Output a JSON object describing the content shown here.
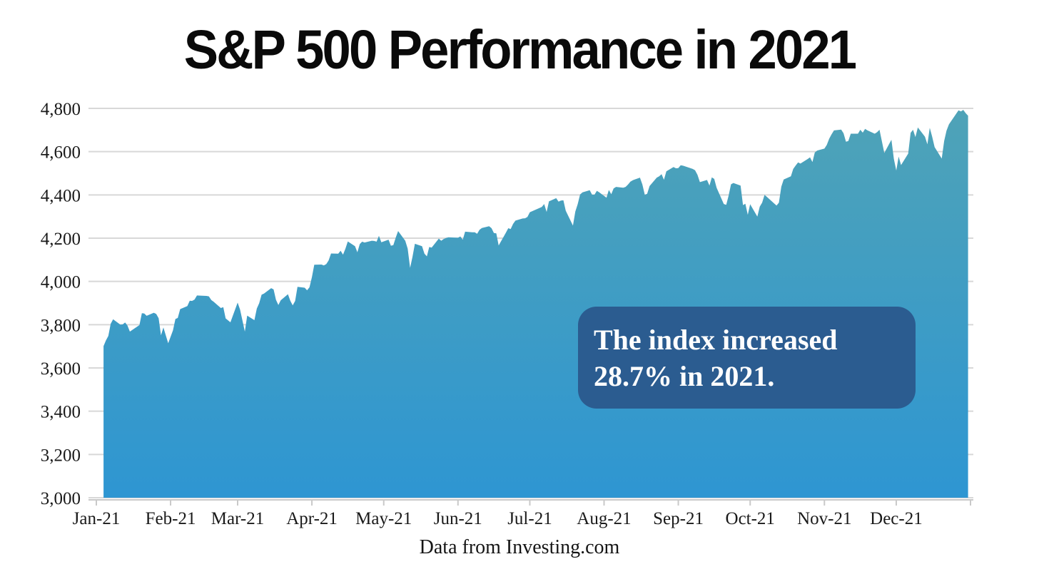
{
  "title": "S&P 500 Performance in 2021",
  "footer": "Data from Investing.com",
  "annotation": {
    "line1": "The index increased",
    "line2": "28.7% in 2021.",
    "bg_color": "#2B5C90",
    "text_color": "#FFFFFF"
  },
  "colors": {
    "area_top": "#4FA3B7",
    "area_bottom": "#2E96D2",
    "gridline": "#D8D8D8",
    "axis": "#C9C9C9",
    "tick_label": "#1A1A1A",
    "title": "#0A0A0A"
  },
  "chart_data": {
    "type": "area",
    "title": "S&P 500 Performance in 2021",
    "xlabel": "",
    "ylabel": "",
    "legend": "none",
    "grid": "horizontal",
    "ylim": [
      3000,
      4800
    ],
    "x_unit": "day of year 2021",
    "annotation_text": "The index increased 28.7% in 2021.",
    "source_text": "Data from Investing.com",
    "y_ticks": [
      {
        "value": 3000,
        "label": "3,000"
      },
      {
        "value": 3200,
        "label": "3,200"
      },
      {
        "value": 3400,
        "label": "3,400"
      },
      {
        "value": 3600,
        "label": "3,600"
      },
      {
        "value": 3800,
        "label": "3,800"
      },
      {
        "value": 4000,
        "label": "4,000"
      },
      {
        "value": 4200,
        "label": "4,200"
      },
      {
        "value": 4400,
        "label": "4,400"
      },
      {
        "value": 4600,
        "label": "4,600"
      },
      {
        "value": 4800,
        "label": "4,800"
      }
    ],
    "x_ticks": [
      {
        "label": "Jan-21",
        "day": 0
      },
      {
        "label": "Feb-21",
        "day": 31
      },
      {
        "label": "Mar-21",
        "day": 59
      },
      {
        "label": "Apr-21",
        "day": 90
      },
      {
        "label": "May-21",
        "day": 120
      },
      {
        "label": "Jun-21",
        "day": 151
      },
      {
        "label": "Jul-21",
        "day": 181
      },
      {
        "label": "Aug-21",
        "day": 212
      },
      {
        "label": "Sep-21",
        "day": 243
      },
      {
        "label": "Oct-21",
        "day": 273
      },
      {
        "label": "Nov-21",
        "day": 304
      },
      {
        "label": "Dec-21",
        "day": 334
      },
      {
        "label": "",
        "day": 365
      }
    ],
    "series": [
      {
        "name": "S&P 500 close",
        "points": [
          [
            3,
            3701
          ],
          [
            4,
            3727
          ],
          [
            5,
            3748
          ],
          [
            6,
            3804
          ],
          [
            7,
            3825
          ],
          [
            10,
            3800
          ],
          [
            11,
            3801
          ],
          [
            12,
            3810
          ],
          [
            13,
            3796
          ],
          [
            14,
            3768
          ],
          [
            18,
            3798
          ],
          [
            19,
            3853
          ],
          [
            20,
            3852
          ],
          [
            21,
            3841
          ],
          [
            24,
            3855
          ],
          [
            25,
            3850
          ],
          [
            26,
            3830
          ],
          [
            27,
            3751
          ],
          [
            28,
            3787
          ],
          [
            30,
            3714
          ],
          [
            32,
            3774
          ],
          [
            33,
            3826
          ],
          [
            34,
            3831
          ],
          [
            35,
            3872
          ],
          [
            38,
            3886
          ],
          [
            39,
            3911
          ],
          [
            40,
            3910
          ],
          [
            41,
            3916
          ],
          [
            42,
            3935
          ],
          [
            46,
            3933
          ],
          [
            47,
            3931
          ],
          [
            48,
            3914
          ],
          [
            49,
            3906
          ],
          [
            52,
            3877
          ],
          [
            53,
            3881
          ],
          [
            54,
            3829
          ],
          [
            56,
            3811
          ],
          [
            59,
            3902
          ],
          [
            60,
            3870
          ],
          [
            61,
            3820
          ],
          [
            62,
            3768
          ],
          [
            63,
            3842
          ],
          [
            66,
            3821
          ],
          [
            67,
            3875
          ],
          [
            68,
            3899
          ],
          [
            69,
            3939
          ],
          [
            70,
            3944
          ],
          [
            73,
            3969
          ],
          [
            74,
            3963
          ],
          [
            75,
            3915
          ],
          [
            76,
            3891
          ],
          [
            77,
            3913
          ],
          [
            80,
            3941
          ],
          [
            81,
            3911
          ],
          [
            82,
            3889
          ],
          [
            83,
            3910
          ],
          [
            84,
            3975
          ],
          [
            87,
            3971
          ],
          [
            88,
            3959
          ],
          [
            89,
            3973
          ],
          [
            90,
            4020
          ],
          [
            91,
            4077
          ],
          [
            94,
            4078
          ],
          [
            95,
            4074
          ],
          [
            96,
            4080
          ],
          [
            97,
            4097
          ],
          [
            98,
            4129
          ],
          [
            101,
            4128
          ],
          [
            102,
            4142
          ],
          [
            103,
            4124
          ],
          [
            104,
            4151
          ],
          [
            105,
            4185
          ],
          [
            108,
            4163
          ],
          [
            109,
            4135
          ],
          [
            110,
            4173
          ],
          [
            111,
            4184
          ],
          [
            112,
            4180
          ],
          [
            115,
            4188
          ],
          [
            116,
            4187
          ],
          [
            117,
            4184
          ],
          [
            118,
            4211
          ],
          [
            119,
            4181
          ],
          [
            122,
            4193
          ],
          [
            123,
            4165
          ],
          [
            124,
            4168
          ],
          [
            125,
            4202
          ],
          [
            126,
            4233
          ],
          [
            129,
            4188
          ],
          [
            130,
            4152
          ],
          [
            131,
            4063
          ],
          [
            132,
            4113
          ],
          [
            133,
            4174
          ],
          [
            136,
            4163
          ],
          [
            137,
            4128
          ],
          [
            138,
            4116
          ],
          [
            139,
            4159
          ],
          [
            140,
            4156
          ],
          [
            143,
            4198
          ],
          [
            144,
            4188
          ],
          [
            145,
            4196
          ],
          [
            146,
            4201
          ],
          [
            147,
            4204
          ],
          [
            151,
            4202
          ],
          [
            152,
            4208
          ],
          [
            153,
            4193
          ],
          [
            154,
            4230
          ],
          [
            157,
            4227
          ],
          [
            158,
            4227
          ],
          [
            159,
            4220
          ],
          [
            160,
            4239
          ],
          [
            161,
            4247
          ],
          [
            164,
            4255
          ],
          [
            165,
            4246
          ],
          [
            166,
            4224
          ],
          [
            167,
            4222
          ],
          [
            168,
            4166
          ],
          [
            171,
            4225
          ],
          [
            172,
            4246
          ],
          [
            173,
            4242
          ],
          [
            174,
            4266
          ],
          [
            175,
            4281
          ],
          [
            178,
            4291
          ],
          [
            179,
            4292
          ],
          [
            180,
            4298
          ],
          [
            181,
            4320
          ],
          [
            186,
            4344
          ],
          [
            187,
            4358
          ],
          [
            188,
            4321
          ],
          [
            189,
            4370
          ],
          [
            192,
            4385
          ],
          [
            193,
            4369
          ],
          [
            194,
            4374
          ],
          [
            195,
            4375
          ],
          [
            196,
            4327
          ],
          [
            199,
            4258
          ],
          [
            200,
            4323
          ],
          [
            201,
            4358
          ],
          [
            202,
            4402
          ],
          [
            203,
            4412
          ],
          [
            206,
            4422
          ],
          [
            207,
            4401
          ],
          [
            208,
            4401
          ],
          [
            209,
            4419
          ],
          [
            210,
            4412
          ],
          [
            213,
            4387
          ],
          [
            214,
            4423
          ],
          [
            215,
            4403
          ],
          [
            216,
            4430
          ],
          [
            217,
            4437
          ],
          [
            220,
            4433
          ],
          [
            221,
            4437
          ],
          [
            222,
            4448
          ],
          [
            223,
            4461
          ],
          [
            224,
            4468
          ],
          [
            227,
            4480
          ],
          [
            228,
            4448
          ],
          [
            229,
            4400
          ],
          [
            230,
            4405
          ],
          [
            231,
            4441
          ],
          [
            234,
            4480
          ],
          [
            235,
            4486
          ],
          [
            236,
            4496
          ],
          [
            237,
            4470
          ],
          [
            238,
            4509
          ],
          [
            241,
            4529
          ],
          [
            242,
            4523
          ],
          [
            243,
            4524
          ],
          [
            244,
            4537
          ],
          [
            245,
            4535
          ],
          [
            249,
            4520
          ],
          [
            250,
            4514
          ],
          [
            251,
            4493
          ],
          [
            252,
            4459
          ],
          [
            255,
            4469
          ],
          [
            256,
            4443
          ],
          [
            257,
            4481
          ],
          [
            258,
            4474
          ],
          [
            259,
            4433
          ],
          [
            262,
            4358
          ],
          [
            263,
            4354
          ],
          [
            264,
            4396
          ],
          [
            265,
            4449
          ],
          [
            266,
            4455
          ],
          [
            269,
            4443
          ],
          [
            270,
            4353
          ],
          [
            271,
            4359
          ],
          [
            272,
            4308
          ],
          [
            273,
            4357
          ],
          [
            276,
            4300
          ],
          [
            277,
            4346
          ],
          [
            278,
            4364
          ],
          [
            279,
            4400
          ],
          [
            280,
            4391
          ],
          [
            283,
            4361
          ],
          [
            284,
            4351
          ],
          [
            285,
            4364
          ],
          [
            286,
            4438
          ],
          [
            287,
            4471
          ],
          [
            290,
            4486
          ],
          [
            291,
            4520
          ],
          [
            292,
            4536
          ],
          [
            293,
            4550
          ],
          [
            294,
            4545
          ],
          [
            297,
            4566
          ],
          [
            298,
            4574
          ],
          [
            299,
            4552
          ],
          [
            300,
            4596
          ],
          [
            301,
            4605
          ],
          [
            304,
            4614
          ],
          [
            305,
            4631
          ],
          [
            306,
            4660
          ],
          [
            307,
            4680
          ],
          [
            308,
            4698
          ],
          [
            311,
            4702
          ],
          [
            312,
            4685
          ],
          [
            313,
            4646
          ],
          [
            314,
            4649
          ],
          [
            315,
            4683
          ],
          [
            318,
            4683
          ],
          [
            319,
            4701
          ],
          [
            320,
            4688
          ],
          [
            321,
            4705
          ],
          [
            322,
            4698
          ],
          [
            325,
            4683
          ],
          [
            326,
            4690
          ],
          [
            327,
            4701
          ],
          [
            329,
            4594
          ],
          [
            332,
            4655
          ],
          [
            333,
            4567
          ],
          [
            334,
            4513
          ],
          [
            335,
            4577
          ],
          [
            336,
            4538
          ],
          [
            339,
            4591
          ],
          [
            340,
            4687
          ],
          [
            341,
            4701
          ],
          [
            342,
            4667
          ],
          [
            343,
            4712
          ],
          [
            346,
            4669
          ],
          [
            347,
            4634
          ],
          [
            348,
            4710
          ],
          [
            349,
            4669
          ],
          [
            350,
            4621
          ],
          [
            353,
            4568
          ],
          [
            354,
            4649
          ],
          [
            355,
            4697
          ],
          [
            356,
            4726
          ],
          [
            360,
            4791
          ],
          [
            361,
            4786
          ],
          [
            362,
            4793
          ],
          [
            363,
            4778
          ],
          [
            364,
            4766
          ]
        ]
      }
    ]
  }
}
